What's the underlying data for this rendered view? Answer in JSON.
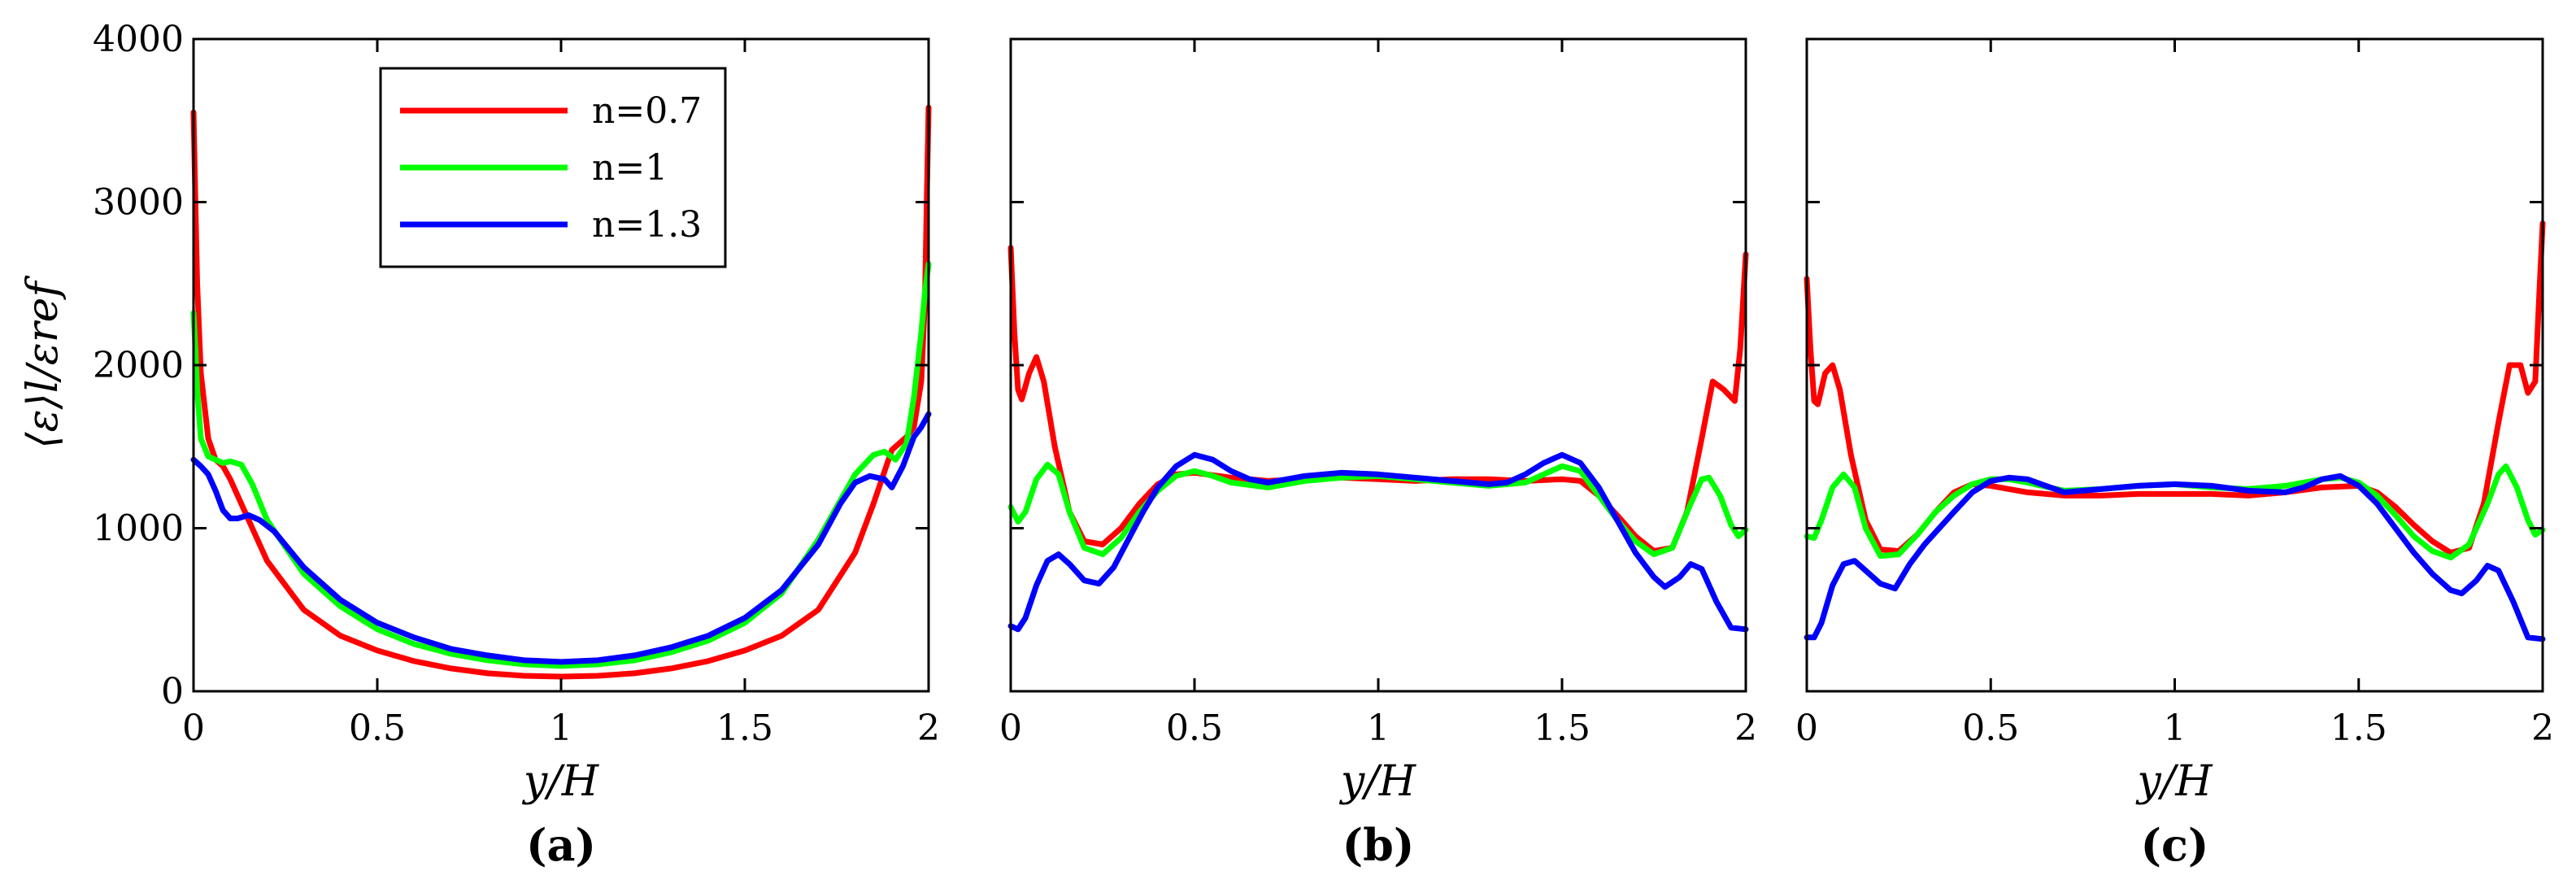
{
  "colors": {
    "n07": "#ff0000",
    "n1": "#00ff00",
    "n13": "#0000ff"
  },
  "chart_data": [
    {
      "type": "line",
      "panel": "(a)",
      "xlabel": "y/H",
      "ylabel": "⟨ε⟩l/εref",
      "xlim": [
        0,
        2
      ],
      "ylim": [
        0,
        4000
      ],
      "xticks": [
        "0",
        "0.5",
        "1",
        "1.5",
        "2"
      ],
      "yticks": [
        "0",
        "1000",
        "2000",
        "3000",
        "4000"
      ],
      "legend": {
        "position": "top-left",
        "entries": [
          "n=0.7",
          "n=1",
          "n=1.3"
        ]
      },
      "series": [
        {
          "name": "n=0.7",
          "color": "#ff0000",
          "x": [
            0,
            0.005,
            0.01,
            0.02,
            0.04,
            0.06,
            0.08,
            0.1,
            0.15,
            0.2,
            0.3,
            0.4,
            0.5,
            0.6,
            0.7,
            0.8,
            0.9,
            1,
            1.1,
            1.2,
            1.3,
            1.4,
            1.5,
            1.6,
            1.7,
            1.8,
            1.85,
            1.9,
            1.94,
            1.96,
            1.98,
            1.99,
            1.995,
            2
          ],
          "y": [
            3550,
            3000,
            2500,
            1950,
            1550,
            1420,
            1380,
            1300,
            1050,
            800,
            500,
            340,
            250,
            185,
            140,
            110,
            95,
            90,
            95,
            110,
            140,
            185,
            250,
            340,
            500,
            850,
            1150,
            1480,
            1560,
            1620,
            1900,
            2400,
            3000,
            3580
          ]
        },
        {
          "name": "n=1",
          "color": "#00ff00",
          "x": [
            0,
            0.005,
            0.01,
            0.02,
            0.04,
            0.06,
            0.08,
            0.1,
            0.13,
            0.16,
            0.2,
            0.3,
            0.4,
            0.5,
            0.6,
            0.7,
            0.8,
            0.9,
            1,
            1.1,
            1.2,
            1.3,
            1.4,
            1.5,
            1.6,
            1.7,
            1.8,
            1.85,
            1.88,
            1.91,
            1.94,
            1.96,
            1.98,
            1.99,
            2
          ],
          "y": [
            2320,
            2100,
            1850,
            1550,
            1440,
            1420,
            1400,
            1410,
            1390,
            1270,
            1050,
            720,
            520,
            380,
            290,
            230,
            190,
            165,
            155,
            165,
            190,
            240,
            310,
            420,
            600,
            930,
            1330,
            1450,
            1470,
            1420,
            1520,
            1800,
            2200,
            2450,
            2620
          ]
        },
        {
          "name": "n=1.3",
          "color": "#0000ff",
          "x": [
            0,
            0.02,
            0.04,
            0.06,
            0.08,
            0.1,
            0.12,
            0.15,
            0.18,
            0.22,
            0.3,
            0.4,
            0.5,
            0.6,
            0.7,
            0.8,
            0.9,
            1,
            1.1,
            1.2,
            1.3,
            1.4,
            1.5,
            1.6,
            1.7,
            1.76,
            1.8,
            1.84,
            1.88,
            1.9,
            1.93,
            1.96,
            1.98,
            2
          ],
          "y": [
            1420,
            1380,
            1330,
            1230,
            1110,
            1060,
            1060,
            1080,
            1050,
            980,
            760,
            560,
            420,
            330,
            260,
            220,
            190,
            180,
            190,
            220,
            270,
            340,
            450,
            620,
            900,
            1150,
            1280,
            1320,
            1300,
            1250,
            1380,
            1560,
            1620,
            1700
          ]
        }
      ]
    },
    {
      "type": "line",
      "panel": "(b)",
      "xlabel": "y/H",
      "xlim": [
        0,
        2
      ],
      "ylim": [
        0,
        4000
      ],
      "xticks": [
        "0",
        "0.5",
        "1",
        "1.5",
        "2"
      ],
      "series": [
        {
          "name": "n=0.7",
          "color": "#ff0000",
          "x": [
            0,
            0.01,
            0.02,
            0.03,
            0.05,
            0.07,
            0.09,
            0.12,
            0.16,
            0.2,
            0.25,
            0.3,
            0.35,
            0.4,
            0.45,
            0.5,
            0.6,
            0.7,
            0.8,
            0.9,
            1,
            1.1,
            1.2,
            1.3,
            1.4,
            1.5,
            1.55,
            1.6,
            1.65,
            1.7,
            1.75,
            1.8,
            1.84,
            1.88,
            1.91,
            1.94,
            1.97,
            1.985,
            2
          ],
          "y": [
            2720,
            2200,
            1850,
            1790,
            1950,
            2050,
            1900,
            1500,
            1100,
            920,
            900,
            1000,
            1150,
            1270,
            1330,
            1340,
            1310,
            1290,
            1300,
            1310,
            1300,
            1290,
            1300,
            1300,
            1290,
            1300,
            1290,
            1200,
            1080,
            950,
            860,
            880,
            1100,
            1550,
            1900,
            1850,
            1780,
            2100,
            2680
          ]
        },
        {
          "name": "n=1",
          "color": "#00ff00",
          "x": [
            0,
            0.02,
            0.04,
            0.07,
            0.1,
            0.13,
            0.16,
            0.2,
            0.25,
            0.3,
            0.35,
            0.4,
            0.45,
            0.5,
            0.55,
            0.6,
            0.7,
            0.8,
            0.9,
            1,
            1.1,
            1.2,
            1.3,
            1.4,
            1.45,
            1.5,
            1.55,
            1.6,
            1.65,
            1.7,
            1.75,
            1.8,
            1.85,
            1.88,
            1.9,
            1.93,
            1.96,
            1.98,
            2
          ],
          "y": [
            1130,
            1040,
            1100,
            1300,
            1390,
            1330,
            1100,
            880,
            840,
            940,
            1100,
            1230,
            1320,
            1350,
            1320,
            1280,
            1250,
            1290,
            1310,
            1320,
            1300,
            1280,
            1260,
            1280,
            1330,
            1380,
            1350,
            1200,
            1050,
            920,
            840,
            880,
            1150,
            1300,
            1310,
            1200,
            1020,
            950,
            990
          ]
        },
        {
          "name": "n=1.3",
          "color": "#0000ff",
          "x": [
            0,
            0.02,
            0.04,
            0.07,
            0.1,
            0.13,
            0.16,
            0.2,
            0.24,
            0.28,
            0.32,
            0.36,
            0.4,
            0.45,
            0.5,
            0.55,
            0.6,
            0.65,
            0.7,
            0.8,
            0.9,
            1,
            1.1,
            1.2,
            1.3,
            1.35,
            1.4,
            1.45,
            1.5,
            1.55,
            1.6,
            1.65,
            1.7,
            1.75,
            1.78,
            1.82,
            1.85,
            1.88,
            1.92,
            1.96,
            2
          ],
          "y": [
            400,
            380,
            450,
            650,
            800,
            840,
            780,
            680,
            660,
            760,
            930,
            1100,
            1250,
            1380,
            1450,
            1420,
            1350,
            1300,
            1280,
            1320,
            1340,
            1330,
            1310,
            1290,
            1270,
            1280,
            1330,
            1400,
            1450,
            1400,
            1250,
            1050,
            850,
            700,
            640,
            700,
            780,
            750,
            550,
            390,
            380
          ]
        }
      ]
    },
    {
      "type": "line",
      "panel": "(c)",
      "xlabel": "y/H",
      "xlim": [
        0,
        2
      ],
      "ylim": [
        0,
        4000
      ],
      "xticks": [
        "0",
        "0.5",
        "1",
        "1.5",
        "2"
      ],
      "series": [
        {
          "name": "n=0.7",
          "color": "#ff0000",
          "x": [
            0,
            0.01,
            0.02,
            0.03,
            0.05,
            0.07,
            0.09,
            0.12,
            0.16,
            0.2,
            0.25,
            0.3,
            0.35,
            0.4,
            0.45,
            0.5,
            0.6,
            0.7,
            0.8,
            0.9,
            1,
            1.1,
            1.2,
            1.3,
            1.4,
            1.5,
            1.55,
            1.6,
            1.65,
            1.7,
            1.75,
            1.8,
            1.84,
            1.88,
            1.91,
            1.94,
            1.96,
            1.98,
            1.99,
            2
          ],
          "y": [
            2530,
            2100,
            1780,
            1760,
            1950,
            2000,
            1850,
            1450,
            1050,
            870,
            860,
            960,
            1100,
            1220,
            1270,
            1260,
            1220,
            1200,
            1200,
            1210,
            1210,
            1210,
            1200,
            1220,
            1250,
            1260,
            1220,
            1130,
            1020,
            920,
            850,
            880,
            1150,
            1650,
            2000,
            2000,
            1830,
            1900,
            2400,
            2870
          ]
        },
        {
          "name": "n=1",
          "color": "#00ff00",
          "x": [
            0,
            0.02,
            0.04,
            0.07,
            0.1,
            0.13,
            0.16,
            0.2,
            0.25,
            0.3,
            0.35,
            0.4,
            0.45,
            0.5,
            0.55,
            0.6,
            0.7,
            0.8,
            0.9,
            1,
            1.1,
            1.2,
            1.3,
            1.4,
            1.45,
            1.5,
            1.55,
            1.6,
            1.65,
            1.7,
            1.75,
            1.8,
            1.85,
            1.88,
            1.9,
            1.93,
            1.96,
            1.98,
            2
          ],
          "y": [
            950,
            940,
            1050,
            1250,
            1330,
            1250,
            1000,
            830,
            840,
            960,
            1100,
            1200,
            1270,
            1300,
            1300,
            1280,
            1230,
            1240,
            1260,
            1270,
            1250,
            1240,
            1260,
            1300,
            1310,
            1280,
            1200,
            1080,
            950,
            860,
            820,
            900,
            1150,
            1330,
            1380,
            1250,
            1050,
            960,
            990
          ]
        },
        {
          "name": "n=1.3",
          "color": "#0000ff",
          "x": [
            0,
            0.02,
            0.04,
            0.07,
            0.1,
            0.13,
            0.16,
            0.2,
            0.24,
            0.28,
            0.32,
            0.36,
            0.4,
            0.45,
            0.5,
            0.55,
            0.6,
            0.65,
            0.7,
            0.8,
            0.9,
            1,
            1.1,
            1.2,
            1.3,
            1.35,
            1.4,
            1.45,
            1.5,
            1.55,
            1.6,
            1.65,
            1.7,
            1.75,
            1.78,
            1.82,
            1.85,
            1.88,
            1.92,
            1.96,
            2
          ],
          "y": [
            330,
            330,
            420,
            650,
            780,
            800,
            740,
            660,
            630,
            780,
            900,
            1000,
            1100,
            1220,
            1290,
            1310,
            1300,
            1260,
            1220,
            1240,
            1260,
            1270,
            1260,
            1230,
            1220,
            1250,
            1300,
            1320,
            1260,
            1150,
            1000,
            850,
            720,
            620,
            600,
            680,
            770,
            740,
            550,
            330,
            320
          ]
        }
      ]
    }
  ]
}
